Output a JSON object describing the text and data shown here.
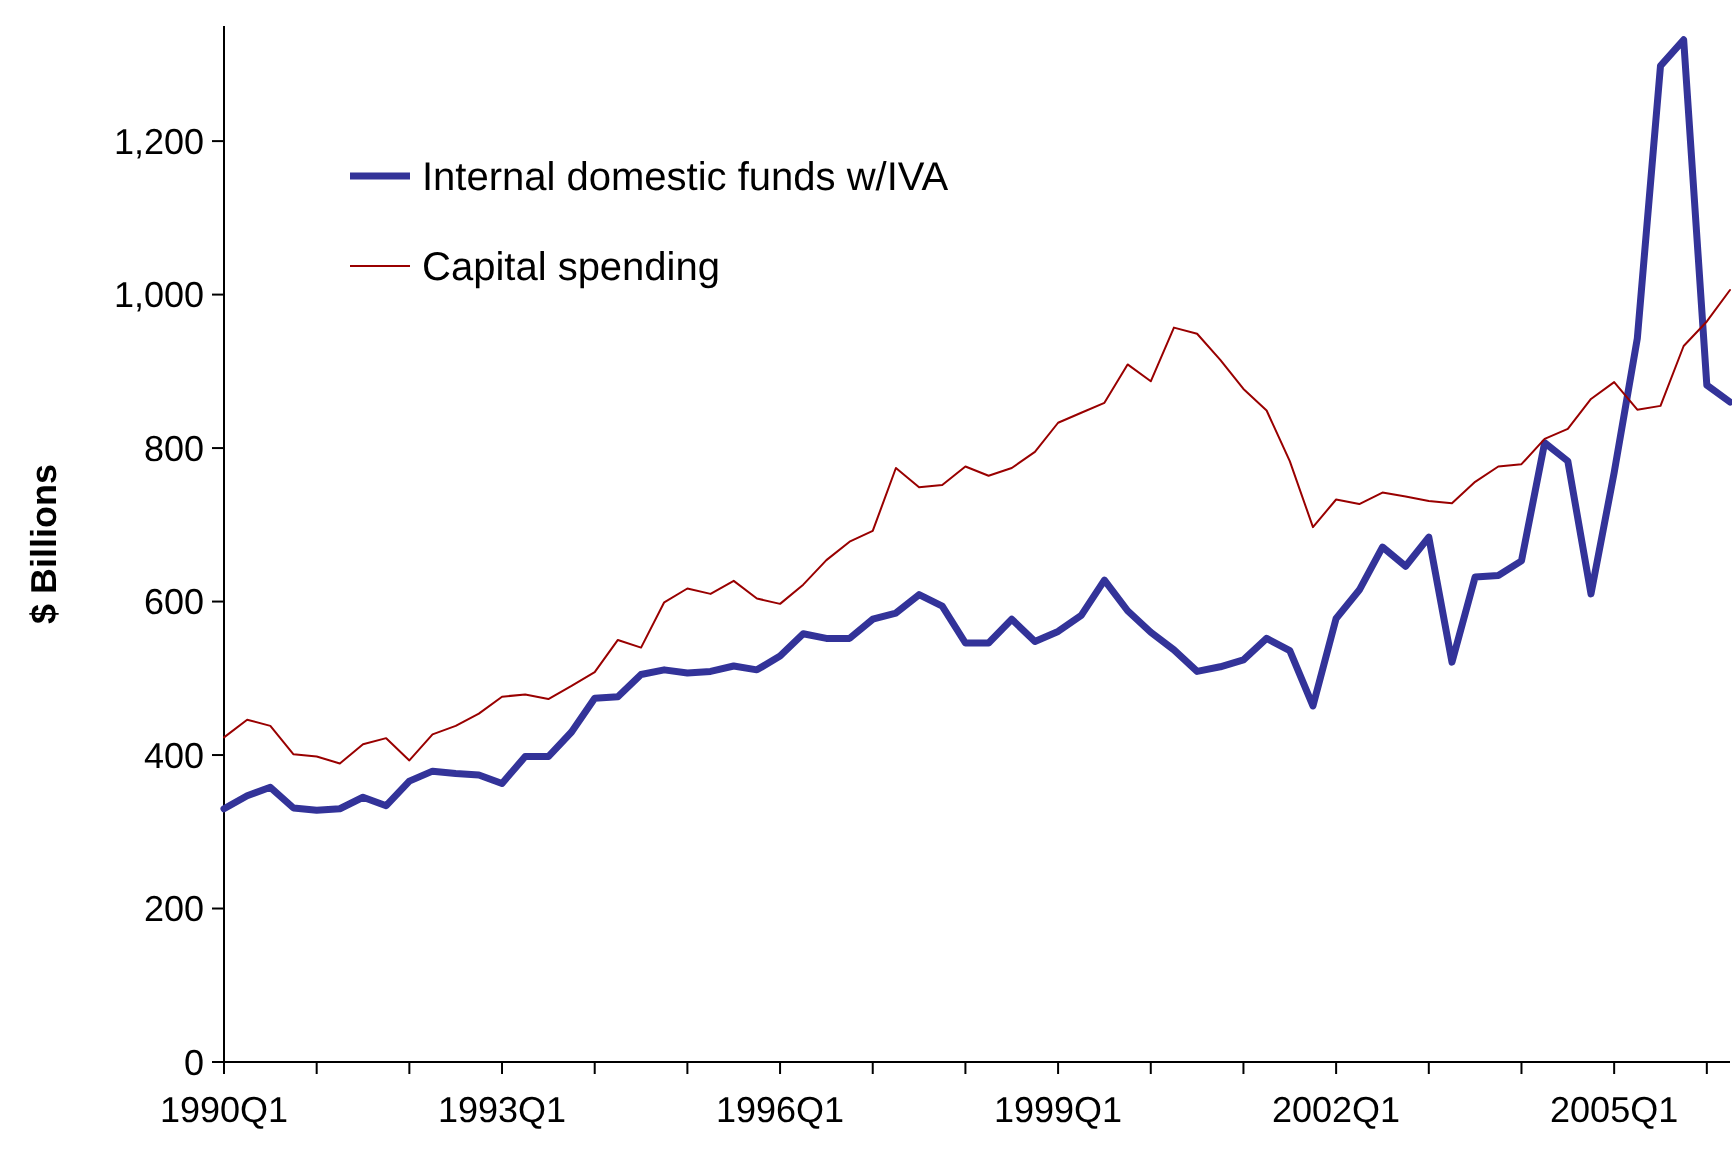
{
  "chart_data": {
    "type": "line",
    "ylabel": "$ Billions",
    "categories": [
      "1990Q1",
      null,
      null,
      null,
      null,
      null,
      null,
      null,
      null,
      null,
      null,
      null,
      "1993Q1",
      null,
      null,
      null,
      null,
      null,
      null,
      null,
      null,
      null,
      null,
      null,
      "1996Q1",
      null,
      null,
      null,
      null,
      null,
      null,
      null,
      null,
      null,
      null,
      null,
      "1999Q1",
      null,
      null,
      null,
      null,
      null,
      null,
      null,
      null,
      null,
      null,
      null,
      "2002Q1",
      null,
      null,
      null,
      null,
      null,
      null,
      null,
      null,
      null,
      null,
      null,
      "2005Q1",
      null,
      null,
      null,
      null,
      null
    ],
    "series": [
      {
        "name": "Internal domestic funds w/IVA",
        "color": "#333399",
        "values": [
          330,
          347,
          358,
          331,
          328,
          330,
          345,
          334,
          366,
          379,
          376,
          374,
          363,
          398,
          398,
          430,
          474,
          476,
          505,
          511,
          507,
          509,
          516,
          511,
          529,
          558,
          552,
          552,
          577,
          585,
          609,
          594,
          546,
          546,
          577,
          548,
          561,
          582,
          628,
          588,
          560,
          537,
          509,
          515,
          524,
          552,
          536,
          464,
          578,
          615,
          671,
          646,
          684,
          521,
          632,
          634,
          653,
          807,
          783,
          610,
          768,
          943,
          1298,
          1332,
          882,
          860
        ]
      },
      {
        "name": "Capital spending",
        "color": "#990000",
        "values": [
          423,
          446,
          438,
          401,
          398,
          389,
          414,
          422,
          393,
          427,
          438,
          454,
          476,
          479,
          473,
          490,
          508,
          550,
          540,
          599,
          617,
          610,
          627,
          604,
          597,
          622,
          654,
          678,
          692,
          774,
          749,
          752,
          776,
          764,
          774,
          795,
          833,
          846,
          859,
          909,
          887,
          957,
          949,
          915,
          877,
          849,
          783,
          697,
          733,
          727,
          742,
          737,
          731,
          728,
          756,
          776,
          779,
          812,
          825,
          864,
          886,
          850,
          855,
          933,
          965,
          1006
        ]
      }
    ],
    "ylim": [
      0,
      1350
    ],
    "yticks": [
      0,
      {
        "value": 200,
        "label": "200"
      },
      {
        "value": 400,
        "label": "400"
      },
      {
        "value": 600,
        "label": "600"
      },
      {
        "value": 800,
        "label": "800"
      },
      {
        "value": 1000,
        "label": "1,000"
      },
      {
        "value": 1200,
        "label": "1,200"
      }
    ],
    "grid": false,
    "legend": "top left",
    "line_style": "solid"
  }
}
